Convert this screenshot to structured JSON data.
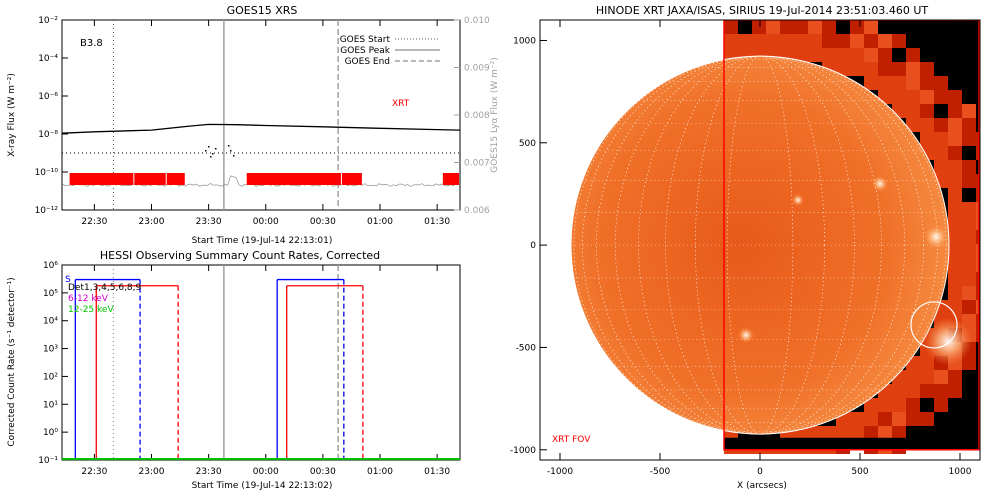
{
  "panels": {
    "goes": {
      "title": "GOES15 XRS",
      "class_label": "B3.8",
      "xlabel": "Start Time (19-Jul-14 22:13:01)",
      "ylabel": "X-ray Flux (W m⁻²)",
      "y2label": "GOES15 Lyα Flux (W m⁻²)",
      "legend": [
        "GOES Start",
        "GOES Peak",
        "GOES End"
      ],
      "xrt_label": "XRT"
    },
    "hessi": {
      "title": "HESSI Observing Summary Count Rates, Corrected",
      "xlabel": "Start Time (19-Jul-14 22:13:02)",
      "ylabel": "Corrected Count Rate (s⁻¹ detector⁻¹)",
      "legend": [
        "S",
        "Det1,3,4,5,6,8,9",
        "6-12 keV",
        "12-25 keV"
      ]
    },
    "xrt": {
      "title": "HINODE XRT JAXA/ISAS, SIRIUS 19-Jul-2014 23:51:03.460 UT",
      "xlabel": "X (arcsecs)",
      "fov_label": "XRT FOV"
    }
  },
  "colors": {
    "red": "#ff0000",
    "blue": "#0000ff",
    "magenta": "#d000d0",
    "green": "#00c000",
    "gray": "#a0a0a0",
    "dark": "#000000"
  },
  "chart_data": [
    {
      "type": "line",
      "title": "GOES15 XRS",
      "xlabel": "Start Time (19-Jul-14 22:13:01)",
      "ylabel": "X-ray Flux (W m⁻²)",
      "y2label": "GOES15 Lyα Flux (W m⁻²)",
      "x_range": [
        "22:13",
        "01:42"
      ],
      "x_ticks": [
        "22:30",
        "23:00",
        "23:30",
        "00:00",
        "00:30",
        "01:00",
        "01:30"
      ],
      "y_scale": "log",
      "y_ticks": [
        "10⁻¹²",
        "10⁻¹⁰",
        "10⁻⁸",
        "10⁻⁶",
        "10⁻⁴",
        "10⁻²"
      ],
      "y2_ticks": [
        "0.006",
        "0.007",
        "0.008",
        "0.009",
        "0.010"
      ],
      "series": [
        {
          "name": "XRT",
          "x": [
            "22:13",
            "22:30",
            "23:00",
            "23:20",
            "23:30",
            "23:45",
            "00:00",
            "00:30",
            "01:00",
            "01:30",
            "01:42"
          ],
          "values": [
            1.1e-08,
            1.3e-08,
            1.6e-08,
            2.6e-08,
            3.2e-08,
            3.1e-08,
            2.8e-08,
            2.4e-08,
            2e-08,
            1.7e-08,
            1.6e-08
          ]
        }
      ],
      "legend": [
        "GOES Start",
        "GOES Peak",
        "GOES End"
      ],
      "markers": {
        "goes_start": "22:40",
        "goes_peak": "23:38",
        "goes_end": "00:38"
      },
      "red_bars": [
        [
          "22:17",
          "22:51"
        ],
        [
          "22:51",
          "23:08"
        ],
        [
          "23:08",
          "23:18"
        ],
        [
          "23:50",
          "00:40"
        ],
        [
          "00:40",
          "00:51"
        ],
        [
          "01:33",
          "01:42"
        ]
      ],
      "dotted_level": 1e-09,
      "annotation": "B3.8"
    },
    {
      "type": "line",
      "title": "HESSI Observing Summary Count Rates, Corrected",
      "xlabel": "Start Time (19-Jul-14 22:13:02)",
      "ylabel": "Corrected Count Rate (s⁻¹ detector⁻¹)",
      "x_range": [
        "22:13",
        "01:42"
      ],
      "x_ticks": [
        "22:30",
        "23:00",
        "23:30",
        "00:00",
        "00:30",
        "01:00",
        "01:30"
      ],
      "y_scale": "log",
      "y_ticks": [
        "10⁻¹",
        "10⁰",
        "10¹",
        "10²",
        "10³",
        "10⁴",
        "10⁵",
        "10⁶"
      ],
      "legend": [
        "S",
        "Det1,3,4,5,6,8,9",
        "6-12 keV",
        "12-25 keV"
      ],
      "series": [
        {
          "name": "12-25 keV",
          "x": [
            "22:13",
            "01:42"
          ],
          "values": [
            0.1,
            0.1
          ]
        }
      ],
      "blue_bars": [
        {
          "start": "22:20",
          "end": "22:54",
          "level": 300000.0
        },
        {
          "start": "00:06",
          "end": "00:41",
          "level": 300000.0
        }
      ],
      "red_bars": [
        {
          "start": "22:31",
          "end": "23:14",
          "level": 180000.0
        },
        {
          "start": "00:11",
          "end": "00:51",
          "level": 180000.0
        }
      ],
      "markers": {
        "goes_start": "22:40",
        "goes_peak": "23:38",
        "goes_end": "00:38"
      }
    },
    {
      "type": "heatmap",
      "title": "HINODE XRT JAXA/ISAS, SIRIUS 19-Jul-2014 23:51:03.460 UT",
      "xlabel": "X (arcsecs)",
      "x_ticks": [
        -1000,
        -500,
        0,
        500,
        1000
      ],
      "y_ticks": [
        1000,
        500,
        0,
        -500,
        -1000
      ],
      "xlim": [
        -1100,
        1100
      ],
      "ylim": [
        -1050,
        1100
      ],
      "solar_limb_radius": 945,
      "fov": {
        "x": [
          -180,
          1095
        ],
        "y": [
          -1000,
          1100
        ],
        "label": "XRT FOV"
      },
      "marked_circle": {
        "x": 870,
        "y": -390,
        "r": 115
      },
      "bright_regions": [
        {
          "x": 940,
          "y": -470,
          "r": 120
        },
        {
          "x": 880,
          "y": 40,
          "r": 60
        },
        {
          "x": 600,
          "y": 300,
          "r": 40
        },
        {
          "x": 190,
          "y": 220,
          "r": 30
        },
        {
          "x": -70,
          "y": -440,
          "r": 40
        }
      ]
    }
  ]
}
